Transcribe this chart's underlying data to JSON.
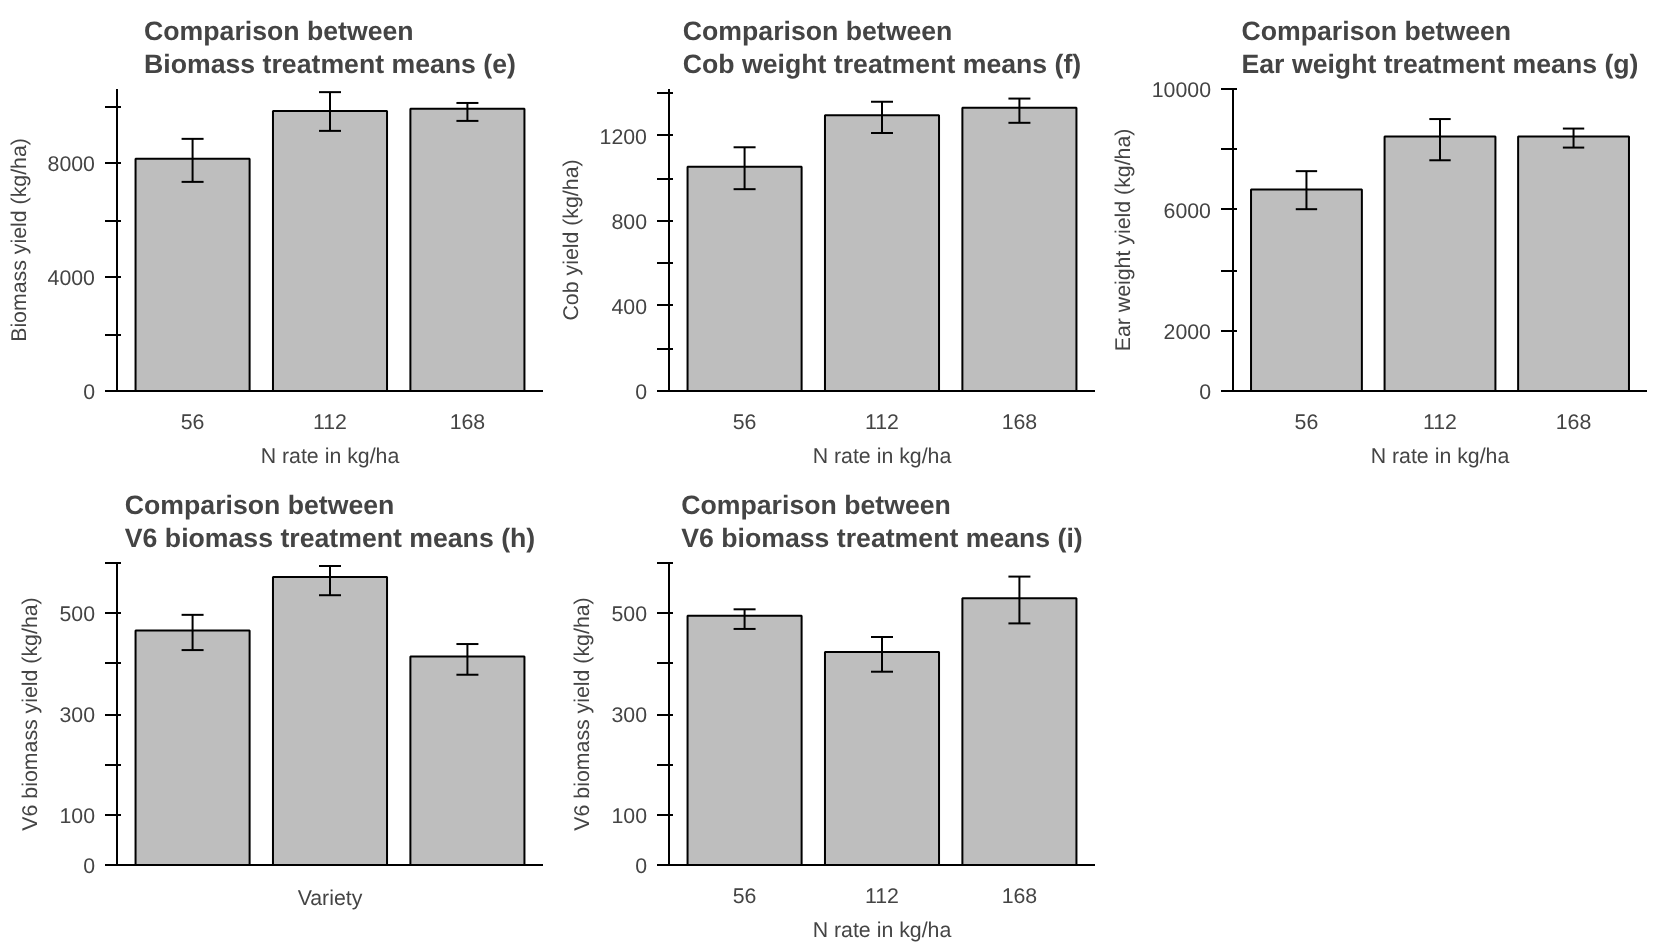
{
  "chart_data": [
    {
      "type": "bar",
      "title": "Comparison between\nBiomass treatment means (e)",
      "xlabel": "N rate in kg/ha",
      "ylabel": "Biomass yield (kg/ha)",
      "categories": [
        "56",
        "112",
        "168"
      ],
      "color": "#bebebe",
      "values": [
        8150,
        9830,
        9910
      ],
      "errors": [
        [
          7340,
          8850
        ],
        [
          9130,
          10490
        ],
        [
          9480,
          10110
        ]
      ],
      "ylim": [
        0,
        10600
      ],
      "yticks": [
        0,
        {
          "value": 2000,
          "label": null
        },
        4000,
        {
          "value": 6000,
          "label": null
        },
        8000,
        {
          "value": 10000,
          "label": null
        }
      ],
      "grid": false
    },
    {
      "type": "bar",
      "title": "Comparison between\nCob weight treatment means (f)",
      "xlabel": "N rate in kg/ha",
      "ylabel": "Cob yield (kg/ha)",
      "categories": [
        "56",
        "112",
        "168"
      ],
      "color": "#bebebe",
      "values": [
        1055,
        1296,
        1332
      ],
      "errors": [
        [
          949,
          1146
        ],
        [
          1213,
          1360
        ],
        [
          1261,
          1375
        ]
      ],
      "ylim": [
        0,
        1420
      ],
      "yticks": [
        0,
        {
          "value": 200,
          "label": null
        },
        400,
        {
          "value": 600,
          "label": null
        },
        800,
        {
          "value": 1000,
          "label": null
        },
        1200,
        {
          "value": 1400,
          "label": null
        }
      ],
      "grid": false
    },
    {
      "type": "bar",
      "title": "Comparison between\nEar weight treatment means (g)",
      "xlabel": "N rate in kg/ha",
      "ylabel": "Ear weight yield (kg/ha)",
      "categories": [
        "56",
        "112",
        "168"
      ],
      "color": "#bebebe",
      "values": [
        6675,
        8430,
        8430
      ],
      "errors": [
        [
          6020,
          7280
        ],
        [
          7640,
          9005
        ],
        [
          8060,
          8690
        ]
      ],
      "ylim": [
        0,
        10000
      ],
      "yticks": [
        0,
        2000,
        {
          "value": 4000,
          "label": null
        },
        6000,
        {
          "value": 8000,
          "label": null
        },
        10000
      ],
      "grid": false
    },
    {
      "type": "bar",
      "title": "Comparison between\nV6 biomass treatment means (h)",
      "xlabel": "Variety",
      "ylabel": "V6 biomass yield (kg/ha)",
      "categories": [
        null,
        null,
        null
      ],
      "color": "#bebebe",
      "values": [
        466,
        572,
        414
      ],
      "errors": [
        [
          427,
          497
        ],
        [
          536,
          594
        ],
        [
          378,
          439
        ]
      ],
      "ylim": [
        0,
        600
      ],
      "yticks": [
        0,
        100,
        {
          "value": 200,
          "label": null
        },
        300,
        {
          "value": 400,
          "label": null
        },
        500,
        {
          "value": 600,
          "label": null
        }
      ],
      "grid": false
    },
    {
      "type": "bar",
      "title": "Comparison between\nV6 biomass treatment means (i)",
      "xlabel": "N rate in kg/ha",
      "ylabel": "V6 biomass yield (kg/ha)",
      "categories": [
        "56",
        "112",
        "168"
      ],
      "color": "#bebebe",
      "values": [
        495,
        423,
        530
      ],
      "errors": [
        [
          469,
          508
        ],
        [
          384,
          453
        ],
        [
          480,
          573
        ]
      ],
      "ylim": [
        0,
        600
      ],
      "yticks": [
        0,
        100,
        {
          "value": 200,
          "label": null
        },
        300,
        {
          "value": 400,
          "label": null
        },
        500,
        {
          "value": 600,
          "label": null
        }
      ],
      "grid": false
    }
  ]
}
